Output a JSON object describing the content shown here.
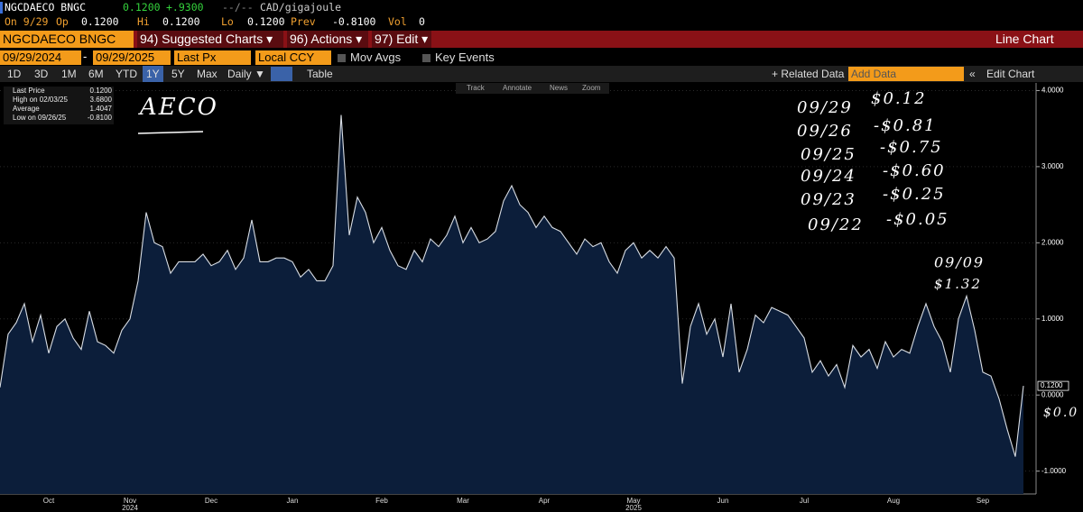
{
  "header": {
    "ticker": "NGCDAECO BNGC",
    "price": "0.1200",
    "change": "+.9300",
    "time": "--/--",
    "unit": "CAD/gigajoule",
    "on_label": "On 9/29",
    "op_label": "Op",
    "op": "0.1200",
    "hi_label": "Hi",
    "hi": "0.1200",
    "lo_label": "Lo",
    "lo": "0.1200",
    "prev_label": "Prev",
    "prev": "-0.8100",
    "vol_label": "Vol",
    "vol": "0"
  },
  "menu": {
    "security": "NGCDAECO BNGC Inc",
    "items": [
      "94) Suggested Charts ▾",
      "96) Actions ▾",
      "97) Edit ▾"
    ],
    "chart_type": "Line Chart"
  },
  "controls": {
    "start": "09/29/2024",
    "sep": "-",
    "end": "09/29/2025",
    "field": "Last Px",
    "currency": "Local CCY",
    "options": [
      "Mov Avgs",
      "Key Events"
    ]
  },
  "toolbar": {
    "periods": [
      "1D",
      "3D",
      "1M",
      "6M",
      "YTD",
      "1Y",
      "5Y",
      "Max"
    ],
    "frequency": "Daily ▼",
    "table": "Table",
    "related": "+ Related Data",
    "add_data": "Add Data",
    "edit_chart": "Edit Chart"
  },
  "tools": [
    "Track",
    "Annotate",
    "News",
    "Zoom"
  ],
  "chart_data": {
    "type": "line",
    "color": "#d8dde4",
    "fill": "#0c1e3a",
    "grid": true,
    "ylim": [
      -1.3,
      4.1
    ],
    "yticks": [
      {
        "value": 4,
        "label": "4.0000"
      },
      {
        "value": 3,
        "label": "3.0000"
      },
      {
        "value": 2,
        "label": "2.0000"
      },
      {
        "value": 1,
        "label": "1.0000"
      },
      {
        "value": 0,
        "label": "0.0000"
      },
      {
        "value": -1,
        "label": "-1.0000"
      }
    ],
    "legend": [
      {
        "label": "Last Price",
        "value": 0.12,
        "value_label": "0.1200"
      },
      {
        "label": "High on 02/03/25",
        "value": 3.68,
        "value_label": "3.6800"
      },
      {
        "label": "Average",
        "value": 1.4047,
        "value_label": "1.4047"
      },
      {
        "label": "Low on 09/26/25",
        "value": -0.81,
        "value_label": "-0.8100"
      }
    ],
    "annotations": [
      "AECO",
      "09/29",
      "$0.12",
      "09/26",
      "-$0.81",
      "09/25",
      "-$0.75",
      "09/24",
      "-$0.60",
      "09/23",
      "-$0.25",
      "09/22",
      "-$0.05",
      "09/09",
      "$1.32",
      "$0.0"
    ],
    "categories": [
      null,
      null,
      null,
      null,
      null,
      null,
      "Oct",
      null,
      null,
      null,
      null,
      null,
      null,
      null,
      null,
      null,
      "Nov",
      null,
      null,
      null,
      null,
      null,
      null,
      null,
      null,
      null,
      "Dec",
      null,
      null,
      null,
      null,
      null,
      null,
      null,
      null,
      null,
      "Jan",
      null,
      null,
      null,
      null,
      null,
      null,
      null,
      null,
      null,
      null,
      "Feb",
      null,
      null,
      null,
      null,
      null,
      null,
      null,
      null,
      null,
      "Mar",
      null,
      null,
      null,
      null,
      null,
      null,
      null,
      null,
      null,
      "Apr",
      null,
      null,
      null,
      null,
      null,
      null,
      null,
      null,
      null,
      null,
      "May",
      null,
      null,
      null,
      null,
      null,
      null,
      null,
      null,
      null,
      null,
      "Jun",
      null,
      null,
      null,
      null,
      null,
      null,
      null,
      null,
      null,
      "Jul",
      null,
      null,
      null,
      null,
      null,
      null,
      null,
      null,
      null,
      null,
      "Aug",
      null,
      null,
      null,
      null,
      null,
      null,
      null,
      null,
      null,
      null,
      "Sep",
      null,
      null,
      null,
      null,
      null
    ],
    "sub_labels": [
      null,
      null,
      null,
      null,
      null,
      null,
      null,
      null,
      null,
      null,
      null,
      null,
      null,
      null,
      null,
      null,
      "2024",
      null,
      null,
      null,
      null,
      null,
      null,
      null,
      null,
      null,
      null,
      null,
      null,
      null,
      null,
      null,
      null,
      null,
      null,
      null,
      null,
      null,
      null,
      null,
      null,
      null,
      null,
      null,
      null,
      null,
      null,
      null,
      null,
      null,
      null,
      null,
      null,
      null,
      null,
      null,
      null,
      null,
      null,
      null,
      null,
      null,
      null,
      null,
      null,
      null,
      null,
      null,
      null,
      null,
      null,
      null,
      null,
      null,
      null,
      null,
      null,
      null,
      "2025",
      null,
      null,
      null,
      null,
      null,
      null,
      null,
      null,
      null,
      null,
      null,
      null,
      null,
      null,
      null,
      null,
      null,
      null,
      null,
      null,
      null,
      null,
      null,
      null,
      null,
      null,
      null,
      null,
      null,
      null,
      null,
      null,
      null,
      null,
      null,
      null,
      null,
      null,
      null,
      null,
      null,
      null,
      null,
      null,
      null,
      null,
      null,
      null
    ],
    "values": [
      0.1,
      0.8,
      0.95,
      1.2,
      0.7,
      1.05,
      0.55,
      0.9,
      1.0,
      0.75,
      0.6,
      1.1,
      0.7,
      0.65,
      0.55,
      0.85,
      1.0,
      1.5,
      2.4,
      2.0,
      1.95,
      1.6,
      1.75,
      1.75,
      1.75,
      1.85,
      1.7,
      1.75,
      1.9,
      1.65,
      1.8,
      2.3,
      1.75,
      1.75,
      1.8,
      1.8,
      1.75,
      1.55,
      1.65,
      1.5,
      1.5,
      1.7,
      3.68,
      2.1,
      2.6,
      2.4,
      2.0,
      2.2,
      1.9,
      1.7,
      1.65,
      1.9,
      1.75,
      2.05,
      1.95,
      2.1,
      2.35,
      2.0,
      2.2,
      2.0,
      2.05,
      2.15,
      2.55,
      2.75,
      2.5,
      2.4,
      2.2,
      2.35,
      2.2,
      2.15,
      2.0,
      1.85,
      2.05,
      1.95,
      2.0,
      1.75,
      1.6,
      1.9,
      2.0,
      1.8,
      1.9,
      1.8,
      1.95,
      1.8,
      0.15,
      0.9,
      1.2,
      0.8,
      1.0,
      0.5,
      1.2,
      0.3,
      0.6,
      1.05,
      0.95,
      1.15,
      1.1,
      1.05,
      0.9,
      0.75,
      0.3,
      0.45,
      0.25,
      0.4,
      0.1,
      0.65,
      0.5,
      0.6,
      0.35,
      0.7,
      0.5,
      0.6,
      0.55,
      0.9,
      1.2,
      0.9,
      0.7,
      0.3,
      1.0,
      1.3,
      0.85,
      0.3,
      0.25,
      -0.05,
      -0.45,
      -0.81,
      0.12
    ]
  }
}
